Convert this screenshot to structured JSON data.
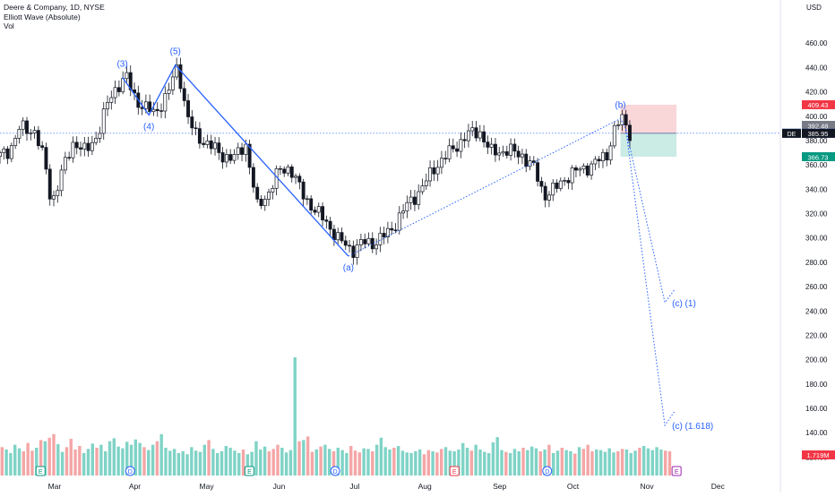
{
  "legend": {
    "symbol": "Deere & Company, 1D, NYSE",
    "indicator": "Elliott Wave (Absolute)",
    "volume": "Vol"
  },
  "chart_data": {
    "type": "candlestick",
    "currency": "USD",
    "ylim": [
      110,
      480
    ],
    "yticks": [
      120,
      140,
      160,
      180,
      200,
      220,
      240,
      260,
      280,
      300,
      320,
      340,
      360,
      380,
      400,
      420,
      440,
      460
    ],
    "x_labels": [
      {
        "label": "Mar",
        "t": 0.07
      },
      {
        "label": "Apr",
        "t": 0.173
      },
      {
        "label": "May",
        "t": 0.265
      },
      {
        "label": "Jun",
        "t": 0.358
      },
      {
        "label": "Jul",
        "t": 0.455
      },
      {
        "label": "Aug",
        "t": 0.545
      },
      {
        "label": "Sep",
        "t": 0.641
      },
      {
        "label": "Oct",
        "t": 0.735
      },
      {
        "label": "Nov",
        "t": 0.83
      },
      {
        "label": "Dec",
        "t": 0.921
      }
    ],
    "price_path": [
      {
        "t": 0.0,
        "p": 367
      },
      {
        "t": 0.012,
        "p": 372
      },
      {
        "t": 0.025,
        "p": 390
      },
      {
        "t": 0.045,
        "p": 388
      },
      {
        "t": 0.058,
        "p": 360
      },
      {
        "t": 0.066,
        "p": 328
      },
      {
        "t": 0.08,
        "p": 355
      },
      {
        "t": 0.095,
        "p": 380
      },
      {
        "t": 0.11,
        "p": 370
      },
      {
        "t": 0.125,
        "p": 385
      },
      {
        "t": 0.138,
        "p": 410
      },
      {
        "t": 0.15,
        "p": 425
      },
      {
        "t": 0.163,
        "p": 432
      },
      {
        "t": 0.17,
        "p": 418
      },
      {
        "t": 0.18,
        "p": 410
      },
      {
        "t": 0.198,
        "p": 402
      },
      {
        "t": 0.215,
        "p": 418
      },
      {
        "t": 0.228,
        "p": 442
      },
      {
        "t": 0.24,
        "p": 400
      },
      {
        "t": 0.25,
        "p": 385
      },
      {
        "t": 0.265,
        "p": 378
      },
      {
        "t": 0.285,
        "p": 368
      },
      {
        "t": 0.3,
        "p": 365
      },
      {
        "t": 0.315,
        "p": 378
      },
      {
        "t": 0.33,
        "p": 325
      },
      {
        "t": 0.345,
        "p": 338
      },
      {
        "t": 0.358,
        "p": 355
      },
      {
        "t": 0.372,
        "p": 358
      },
      {
        "t": 0.388,
        "p": 336
      },
      {
        "t": 0.405,
        "p": 322
      },
      {
        "t": 0.42,
        "p": 312
      },
      {
        "t": 0.435,
        "p": 298
      },
      {
        "t": 0.452,
        "p": 290
      },
      {
        "t": 0.465,
        "p": 296
      },
      {
        "t": 0.48,
        "p": 296
      },
      {
        "t": 0.5,
        "p": 305
      },
      {
        "t": 0.52,
        "p": 325
      },
      {
        "t": 0.54,
        "p": 340
      },
      {
        "t": 0.56,
        "p": 360
      },
      {
        "t": 0.58,
        "p": 372
      },
      {
        "t": 0.598,
        "p": 384
      },
      {
        "t": 0.615,
        "p": 388
      },
      {
        "t": 0.63,
        "p": 370
      },
      {
        "t": 0.65,
        "p": 372
      },
      {
        "t": 0.67,
        "p": 368
      },
      {
        "t": 0.685,
        "p": 357
      },
      {
        "t": 0.698,
        "p": 335
      },
      {
        "t": 0.712,
        "p": 340
      },
      {
        "t": 0.726,
        "p": 350
      },
      {
        "t": 0.74,
        "p": 355
      },
      {
        "t": 0.76,
        "p": 360
      },
      {
        "t": 0.778,
        "p": 368
      },
      {
        "t": 0.79,
        "p": 392
      },
      {
        "t": 0.8,
        "p": 398
      },
      {
        "t": 0.808,
        "p": 386
      }
    ],
    "volume": {
      "label": "1.719M",
      "bars": [
        48,
        44,
        38,
        52,
        46,
        41,
        55,
        42,
        47,
        60,
        58,
        64,
        70,
        53,
        40,
        48,
        62,
        44,
        50,
        38,
        45,
        54,
        47,
        52,
        41,
        58,
        63,
        49,
        46,
        57,
        52,
        61,
        55,
        48,
        43,
        52,
        58,
        70,
        47,
        42,
        45,
        38,
        41,
        36,
        48,
        42,
        40,
        52,
        60,
        45,
        38,
        41,
        50,
        47,
        42,
        38,
        44,
        36,
        40,
        58,
        44,
        49,
        41,
        45,
        52,
        47,
        39,
        43,
        200,
        58,
        60,
        66,
        40,
        44,
        49,
        52,
        45,
        41,
        47,
        43,
        38,
        50,
        42,
        39,
        46,
        45,
        41,
        52,
        64,
        48,
        44,
        47,
        50,
        42,
        39,
        38,
        41,
        44,
        36,
        43,
        41,
        39,
        45,
        48,
        42,
        41,
        44,
        55,
        47,
        42,
        52,
        44,
        40,
        38,
        56,
        65,
        43,
        40,
        38,
        45,
        41,
        47,
        43,
        49,
        46,
        41,
        44,
        52,
        38,
        42,
        47,
        43,
        41,
        37,
        48,
        45,
        52,
        41,
        44,
        43,
        40,
        46,
        39,
        41,
        45,
        44,
        38,
        42,
        47,
        50,
        46,
        43,
        48,
        44,
        42,
        41
      ],
      "scale_max": 200
    },
    "earnings_markers": [
      {
        "letter": "E",
        "t": 0.052
      },
      {
        "letter": "D",
        "t": 0.167
      },
      {
        "letter": "E",
        "t": 0.32
      },
      {
        "letter": "D",
        "t": 0.43
      },
      {
        "letter": "E",
        "t": 0.583
      },
      {
        "letter": "D",
        "t": 0.702
      },
      {
        "letter": "E",
        "t": 0.868
      }
    ],
    "waves": [
      {
        "label": "(3)",
        "t": 0.157,
        "p": 432
      },
      {
        "label": "(4)",
        "t": 0.191,
        "p": 401
      },
      {
        "label": "(5)",
        "t": 0.225,
        "p": 442
      },
      {
        "label": "(a)",
        "t": 0.447,
        "p": 285
      },
      {
        "label": "(b)",
        "t": 0.796,
        "p": 398
      },
      {
        "label": "(c) (1)",
        "t": 0.853,
        "p": 247
      },
      {
        "label": "(c) (1.618)",
        "t": 0.853,
        "p": 146
      }
    ],
    "impulse_path": [
      {
        "t": 0.157,
        "p": 432
      },
      {
        "t": 0.191,
        "p": 401
      },
      {
        "t": 0.225,
        "p": 442
      },
      {
        "t": 0.447,
        "p": 285
      }
    ],
    "corrective_path": [
      {
        "t": 0.447,
        "p": 285
      },
      {
        "t": 0.796,
        "p": 398
      },
      {
        "t": 0.803,
        "p": 389
      }
    ],
    "projection_paths": [
      [
        {
          "t": 0.803,
          "p": 389
        },
        {
          "t": 0.853,
          "p": 247
        },
        {
          "t": 0.866,
          "p": 258
        }
      ],
      [
        {
          "t": 0.803,
          "p": 389
        },
        {
          "t": 0.853,
          "p": 146
        },
        {
          "t": 0.866,
          "p": 158
        }
      ]
    ],
    "position": {
      "t_start": 0.796,
      "t_end": 0.868,
      "entry": 386.0,
      "stop": 409.43,
      "target": 366.73
    },
    "last_price": 385.95,
    "reference_line": 386,
    "price_labels": [
      {
        "text": "409.43",
        "p": 409.43,
        "color": "#f23645"
      },
      {
        "text": "392.48",
        "p": 392.48,
        "color": "#787b86"
      },
      {
        "text": "386.00",
        "p": 386.0,
        "color": "#2962ff",
        "tag": "Post"
      },
      {
        "text": "385.95",
        "p": 385.95,
        "color": "#131722",
        "tag": "DE"
      },
      {
        "text": "366.73",
        "p": 366.73,
        "color": "#089981"
      }
    ],
    "colors": {
      "wave": "#2962ff",
      "wave_label": "#2962ff",
      "up_volume": "#7fd3c6",
      "down_volume": "#f4a6a6",
      "stop_zone": "#f7c9cc",
      "target_zone": "#b9e4dc",
      "candle": "#131722"
    }
  }
}
